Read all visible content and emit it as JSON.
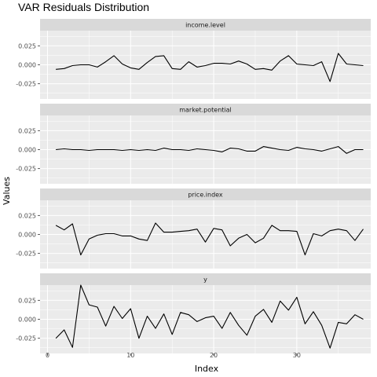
{
  "chart_data": {
    "type": "line",
    "title": "VAR Residuals Distribution",
    "xlabel": "Index",
    "ylabel": "Values",
    "xlim": [
      -0.9,
      38.9
    ],
    "x_ticks": [
      0,
      10,
      20,
      30
    ],
    "ylim": [
      -0.045,
      0.045
    ],
    "y_ticks": [
      -0.025,
      0.0,
      0.025
    ],
    "y_tick_labels": [
      "-0.025",
      "0.000",
      "0.025"
    ],
    "grid": true,
    "facets": [
      {
        "name": "income.level",
        "x": [
          1,
          2,
          3,
          4,
          5,
          6,
          7,
          8,
          9,
          10,
          11,
          12,
          13,
          14,
          15,
          16,
          17,
          18,
          19,
          20,
          21,
          22,
          23,
          24,
          25,
          26,
          27,
          28,
          29,
          30,
          31,
          32,
          33,
          34,
          35,
          36,
          37,
          38
        ],
        "values": [
          -0.006,
          -0.005,
          -0.001,
          0.0,
          0.0,
          -0.003,
          0.004,
          0.012,
          0.001,
          -0.004,
          -0.006,
          0.003,
          0.011,
          0.012,
          -0.005,
          -0.006,
          0.004,
          -0.003,
          -0.001,
          0.002,
          0.002,
          0.001,
          0.005,
          0.001,
          -0.006,
          -0.005,
          -0.007,
          0.005,
          0.012,
          0.001,
          0.0,
          -0.001,
          0.004,
          -0.022,
          0.015,
          0.001,
          0.0,
          -0.001
        ]
      },
      {
        "name": "market.potential",
        "x": [
          1,
          2,
          3,
          4,
          5,
          6,
          7,
          8,
          9,
          10,
          11,
          12,
          13,
          14,
          15,
          16,
          17,
          18,
          19,
          20,
          21,
          22,
          23,
          24,
          25,
          26,
          27,
          28,
          29,
          30,
          31,
          32,
          33,
          34,
          35,
          36,
          37,
          38
        ],
        "values": [
          0.0,
          0.001,
          0.0,
          0.0,
          -0.001,
          0.0,
          0.0,
          0.0,
          -0.001,
          0.0,
          -0.001,
          0.0,
          -0.001,
          0.002,
          0.0,
          0.0,
          -0.001,
          0.001,
          0.0,
          -0.001,
          -0.003,
          0.002,
          0.001,
          -0.002,
          -0.002,
          0.004,
          0.002,
          0.0,
          -0.001,
          0.003,
          0.001,
          0.0,
          -0.002,
          0.001,
          0.004,
          -0.005,
          0.0,
          0.0
        ]
      },
      {
        "name": "price.index",
        "x": [
          1,
          2,
          3,
          4,
          5,
          6,
          7,
          8,
          9,
          10,
          11,
          12,
          13,
          14,
          15,
          16,
          17,
          18,
          19,
          20,
          21,
          22,
          23,
          24,
          25,
          26,
          27,
          28,
          29,
          30,
          31,
          32,
          33,
          34,
          35,
          36,
          37,
          38
        ],
        "values": [
          0.012,
          0.006,
          0.014,
          -0.027,
          -0.006,
          -0.001,
          0.001,
          0.001,
          -0.002,
          -0.002,
          -0.006,
          -0.008,
          0.015,
          0.003,
          0.003,
          0.004,
          0.005,
          0.007,
          -0.01,
          0.008,
          0.006,
          -0.015,
          -0.005,
          0.0,
          -0.011,
          -0.005,
          0.012,
          0.005,
          0.005,
          0.004,
          -0.027,
          0.001,
          -0.002,
          0.005,
          0.007,
          0.005,
          -0.008,
          0.007
        ]
      },
      {
        "name": "y",
        "x": [
          1,
          2,
          3,
          4,
          5,
          6,
          7,
          8,
          9,
          10,
          11,
          12,
          13,
          14,
          15,
          16,
          17,
          18,
          19,
          20,
          21,
          22,
          23,
          24,
          25,
          26,
          27,
          28,
          29,
          30,
          31,
          32,
          33,
          34,
          35,
          36,
          37,
          38
        ],
        "values": [
          -0.025,
          -0.014,
          -0.037,
          0.045,
          0.019,
          0.016,
          -0.009,
          0.017,
          0.001,
          0.014,
          -0.025,
          0.004,
          -0.012,
          0.007,
          -0.02,
          0.009,
          0.006,
          -0.003,
          0.002,
          0.004,
          -0.012,
          0.009,
          -0.008,
          -0.021,
          0.004,
          0.013,
          -0.004,
          0.024,
          0.012,
          0.029,
          -0.006,
          0.01,
          -0.008,
          -0.038,
          -0.004,
          -0.006,
          0.006,
          0.0
        ]
      }
    ],
    "colors": {
      "panel_background": "#ebebeb",
      "strip_background": "#d9d9d9",
      "grid": "#ffffff",
      "line": "#000000",
      "tick_text": "#4d4d4d"
    }
  }
}
